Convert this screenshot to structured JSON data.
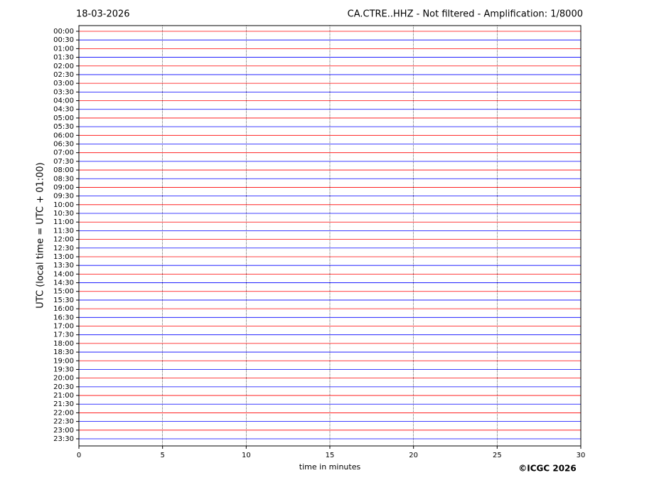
{
  "chart_data": {
    "type": "helicorder",
    "date": "18-03-2026",
    "title": "CA.CTRE..HHZ - Not filtered - Amplification: 1/8000",
    "y_label": "UTC (local time = UTC + 01:00)",
    "x_label": "time in minutes",
    "copyright": "©ICGC 2026",
    "categories": [
      "00:00",
      "00:30",
      "01:00",
      "01:30",
      "02:00",
      "02:30",
      "03:00",
      "03:30",
      "04:00",
      "04:30",
      "05:00",
      "05:30",
      "06:00",
      "06:30",
      "07:00",
      "07:30",
      "08:00",
      "08:30",
      "09:00",
      "09:30",
      "10:00",
      "10:30",
      "11:00",
      "11:30",
      "12:00",
      "12:30",
      "13:00",
      "13:30",
      "14:00",
      "14:30",
      "15:00",
      "15:30",
      "16:00",
      "16:30",
      "17:00",
      "17:30",
      "18:00",
      "18:30",
      "19:00",
      "19:30",
      "20:00",
      "20:30",
      "21:00",
      "21:30",
      "22:00",
      "22:30",
      "23:00",
      "23:30"
    ],
    "colors": [
      "#ff0000",
      "#0000ff"
    ],
    "xlim": [
      0,
      30
    ],
    "xticks": [
      0,
      5,
      10,
      15,
      20,
      25,
      30
    ],
    "grid": true
  }
}
